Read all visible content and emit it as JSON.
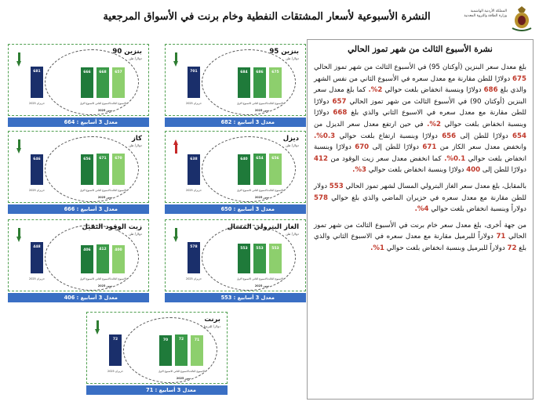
{
  "header": {
    "title": "النشرة الأسبوعية لأسعار المشتقات النفطية وخام برنت في الأسواق المرجعية",
    "logo_text": "المملكة الأردنية الهاشمية وزارة الطاقة والثروة المعدنية"
  },
  "article": {
    "title": "نشرة الأسبوع الثالث من شهر تموز الحالي",
    "paragraphs": [
      [
        {
          "t": "بلغ معدل سعر البنزين (أوكتان 95) في الأسبوع الثالث من شهر تموز الحالي "
        },
        {
          "t": "675",
          "hl": true
        },
        {
          "t": " دولارًا للطن مقارنة مع معدل سعره في الأسبوع الثاني من نفس الشهر والذي بلغ "
        },
        {
          "t": "686",
          "hl": true
        },
        {
          "t": " دولارًا وبنسبة انخفاض بلغت حوالي "
        },
        {
          "t": "2%.",
          "hl": true
        },
        {
          "t": " كما بلغ معدل سعر البنزين (أوكتان 90) في الأسبوع الثالث من شهر تموز الحالي "
        },
        {
          "t": "657",
          "hl": true
        },
        {
          "t": " دولارًا للطن مقارنة مع معدل سعره في الاسبوع الثاني والذي بلغ "
        },
        {
          "t": "668",
          "hl": true
        },
        {
          "t": " دولارًا وبنسبة انخفاض بلغت حوالي "
        },
        {
          "t": "2%.",
          "hl": true
        },
        {
          "t": " في حين ارتفع معدل سعر الديزل من "
        },
        {
          "t": "654",
          "hl": true
        },
        {
          "t": " دولارًا للطن إلى "
        },
        {
          "t": "656",
          "hl": true
        },
        {
          "t": " دولارًا وبنسبة ارتفاع بلغت حوالي "
        },
        {
          "t": "0.3%.",
          "hl": true
        },
        {
          "t": " وانخفض معدل سعر الكاز من "
        },
        {
          "t": "671",
          "hl": true
        },
        {
          "t": " دولارًا للطن إلى "
        },
        {
          "t": "670",
          "hl": true
        },
        {
          "t": " دولارًا وبنسبة انخفاض بلغت حوالي "
        },
        {
          "t": "0.1%.",
          "hl": true
        },
        {
          "t": " كما انخفض معدل سعر زيت الوقود من "
        },
        {
          "t": "412",
          "hl": true
        },
        {
          "t": " دولارًا للطن إلى "
        },
        {
          "t": "400",
          "hl": true
        },
        {
          "t": " دولارًا وبنسبة انخفاض بلغت حوالي "
        },
        {
          "t": "3%.",
          "hl": true
        }
      ],
      [
        {
          "t": "بالمقابل، بلغ معدل سعر الغاز البترولي المسال لشهر تموز الحالي "
        },
        {
          "t": "553",
          "hl": true
        },
        {
          "t": " دولار للطن مقارنة مع معدل سعره في حزيران الماضي والذي بلغ حوالي "
        },
        {
          "t": "578",
          "hl": true
        },
        {
          "t": " دولاراً وبنسبة انخفاض بلغت حوالي "
        },
        {
          "t": "4%.",
          "hl": true
        }
      ],
      [
        {
          "t": "من جهة أخرى، بلغ معدل سعر خام برنت في الأسبوع الثالث من شهر تموز الحالي "
        },
        {
          "t": "71",
          "hl": true
        },
        {
          "t": " دولاراً للبرميل مقارنة مع معدل سعره في الاسبوع الثاني والذي بلغ "
        },
        {
          "t": "72",
          "hl": true
        },
        {
          "t": " دولاراً للبرميل وبنسبة انخفاض بلغت حوالي "
        },
        {
          "t": "1%.",
          "hl": true
        }
      ]
    ]
  },
  "chart_labels": {
    "unit_ton": "دولار/ طن",
    "unit_barrel": "دولار/ للبرميل",
    "prev_label": "حزيران 2025",
    "week_labels": [
      "الاسبوع الاول",
      "الاسبوع الثاني",
      "الاسبوع الثالث"
    ],
    "month_label": "تموز 2025"
  },
  "chart_data": [
    {
      "type": "bar",
      "id": "octane95",
      "title": "بنزين 95",
      "unit": "دولار/ طن",
      "trend": "down",
      "categories": [
        "حزيران 2025",
        "الاسبوع الاول",
        "الاسبوع الثاني",
        "الاسبوع الثالث"
      ],
      "values": [
        701,
        684,
        686,
        675
      ],
      "average_label": "معدل 3 أسابيع : 682",
      "average": 682
    },
    {
      "type": "bar",
      "id": "octane90",
      "title": "بنزين 90",
      "unit": "دولار/ طن",
      "trend": "down",
      "categories": [
        "حزيران 2025",
        "الاسبوع الاول",
        "الاسبوع الثاني",
        "الاسبوع الثالث"
      ],
      "values": [
        681,
        666,
        668,
        657
      ],
      "average_label": "معدل 3 أسابيع : 664",
      "average": 664
    },
    {
      "type": "bar",
      "id": "diesel",
      "title": "ديزل",
      "unit": "دولار/ طن",
      "trend": "up",
      "categories": [
        "حزيران 2025",
        "الاسبوع الاول",
        "الاسبوع الثاني",
        "الاسبوع الثالث"
      ],
      "values": [
        638,
        640,
        654,
        656
      ],
      "average_label": "معدل 3 أسابيع : 650",
      "average": 650
    },
    {
      "type": "bar",
      "id": "kerosene",
      "title": "كاز",
      "unit": "دولار/ طن",
      "trend": "down",
      "categories": [
        "حزيران 2025",
        "الاسبوع الاول",
        "الاسبوع الثاني",
        "الاسبوع الثالث"
      ],
      "values": [
        646,
        656,
        671,
        670
      ],
      "average_label": "معدل 3 أسابيع : 666",
      "average": 666
    },
    {
      "type": "bar",
      "id": "lpg",
      "title": "الغاز البترولي المسال",
      "unit": "دولار/ طن",
      "trend": "down",
      "categories": [
        "حزيران 2025",
        "الاسبوع الاول",
        "الاسبوع الثاني",
        "الاسبوع الثالث"
      ],
      "values": [
        578,
        553,
        553,
        553
      ],
      "average_label": "معدل 3 أسابيع : 553",
      "average": 553
    },
    {
      "type": "bar",
      "id": "fueloil",
      "title": "زيت الوقود الثقيل",
      "unit": "دولار/ طن",
      "trend": "down",
      "categories": [
        "حزيران 2025",
        "الاسبوع الاول",
        "الاسبوع الثاني",
        "الاسبوع الثالث"
      ],
      "values": [
        448,
        406,
        412,
        400
      ],
      "average_label": "معدل 3 أسابيع : 406",
      "average": 406
    },
    {
      "type": "bar",
      "id": "brent",
      "title": "برنت",
      "unit": "دولار/ للبرميل",
      "trend": "down",
      "categories": [
        "حزيران 2025",
        "الاسبوع الاول",
        "الاسبوع الثاني",
        "الاسبوع الثالث"
      ],
      "values": [
        72,
        70,
        72,
        71
      ],
      "average_label": "معدل 3 أسابيع : 71",
      "average": 71
    }
  ],
  "colors": {
    "prev_bar": "#1a2f6b",
    "week1": "#1f7a3a",
    "week2": "#3a9a48",
    "week3": "#8dcf6d",
    "average_band": "#3a6fc4",
    "highlight": "#c0392b"
  }
}
